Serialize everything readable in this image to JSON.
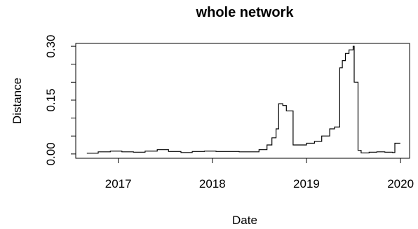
{
  "chart_data": {
    "type": "line",
    "title": "whole network",
    "xlabel": "Date",
    "ylabel": "Distance",
    "xlim": [
      "2016-07-20",
      "2020-02-05"
    ],
    "ylim": [
      -0.012,
      0.308
    ],
    "x_ticks": [
      "2017",
      "2018",
      "2019",
      "2020"
    ],
    "y_ticks": [
      "0.00",
      "0.15",
      "0.30"
    ],
    "y_tick_values": [
      0.0,
      0.15,
      0.3
    ],
    "grid": false,
    "legend": "none",
    "series": [
      {
        "x": [
          "2016-09-01",
          "2016-10-15",
          "2016-12-01",
          "2017-01-15",
          "2017-03-01",
          "2017-04-15",
          "2017-06-01",
          "2017-07-15",
          "2017-09-01",
          "2017-10-15",
          "2017-12-01",
          "2018-01-15",
          "2018-03-01",
          "2018-04-15",
          "2018-06-01",
          "2018-07-01",
          "2018-08-01",
          "2018-08-20",
          "2018-09-05",
          "2018-09-15",
          "2018-10-01",
          "2018-10-15",
          "2018-10-25",
          "2018-11-10",
          "2018-12-01",
          "2019-01-01",
          "2019-02-01",
          "2019-03-01",
          "2019-04-01",
          "2019-04-20",
          "2019-05-10",
          "2019-05-20",
          "2019-06-01",
          "2019-06-15",
          "2019-07-01",
          "2019-07-05",
          "2019-07-20",
          "2019-08-01",
          "2019-09-01",
          "2019-10-01",
          "2019-11-01",
          "2019-12-01",
          "2019-12-10",
          "2019-12-31"
        ],
        "y": [
          0.002,
          0.006,
          0.008,
          0.006,
          0.005,
          0.008,
          0.012,
          0.007,
          0.004,
          0.007,
          0.008,
          0.007,
          0.007,
          0.006,
          0.006,
          0.012,
          0.025,
          0.045,
          0.07,
          0.14,
          0.135,
          0.12,
          0.12,
          0.025,
          0.025,
          0.03,
          0.035,
          0.05,
          0.07,
          0.075,
          0.24,
          0.26,
          0.28,
          0.29,
          0.3,
          0.2,
          0.01,
          0.003,
          0.005,
          0.006,
          0.005,
          0.004,
          0.03,
          0.03
        ]
      }
    ]
  }
}
